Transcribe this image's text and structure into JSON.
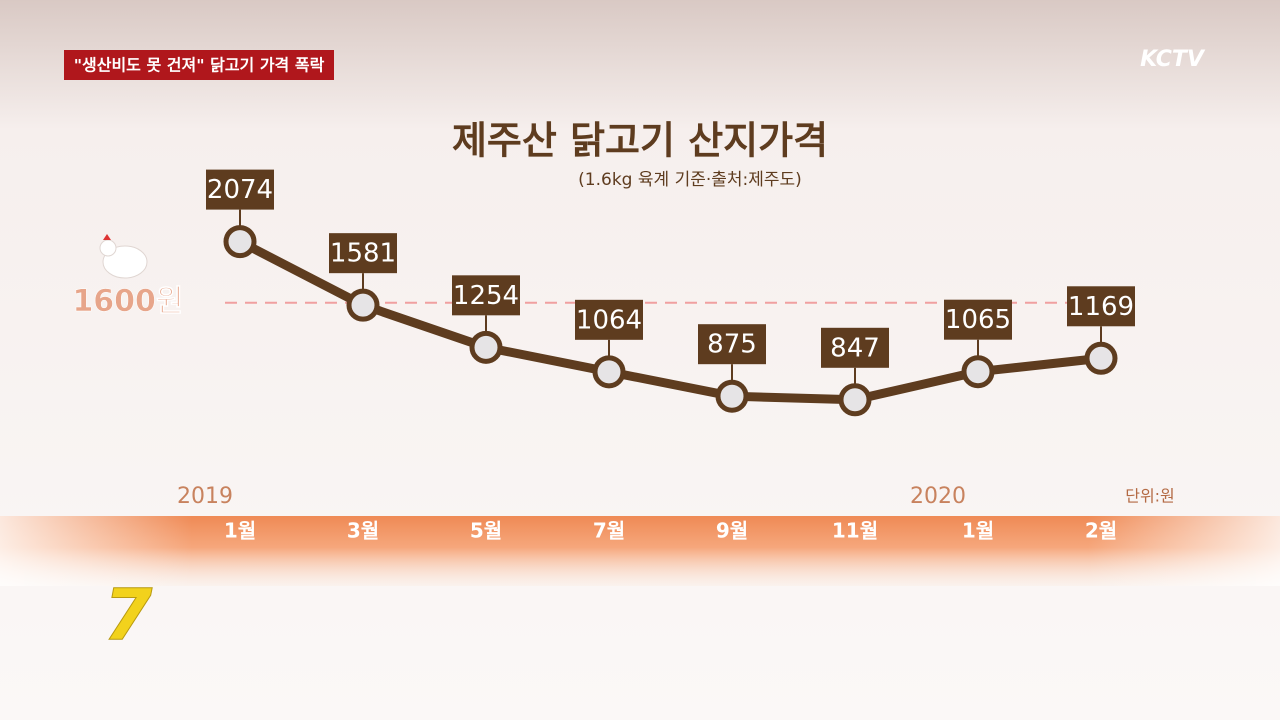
{
  "header": {
    "headline": "\"생산비도 못 건져\" 닭고기 가격 폭락",
    "channel": "KCTV"
  },
  "chart_data": {
    "type": "line",
    "title": "제주산 닭고기 산지가격",
    "subtitle": "(1.6kg 육계 기준·출처:제주도)",
    "categories": [
      "1월",
      "3월",
      "5월",
      "7월",
      "9월",
      "11월",
      "1월",
      "2월"
    ],
    "values": [
      2074,
      1581,
      1254,
      1064,
      875,
      847,
      1065,
      1169
    ],
    "color": "#5e3c1f",
    "ylim": [
      0,
      2800
    ],
    "reference_line": {
      "value": 1600,
      "label": "1600원"
    },
    "year_labels": [
      "2019",
      "2020"
    ],
    "unit": "단위:원"
  },
  "logo": "7"
}
